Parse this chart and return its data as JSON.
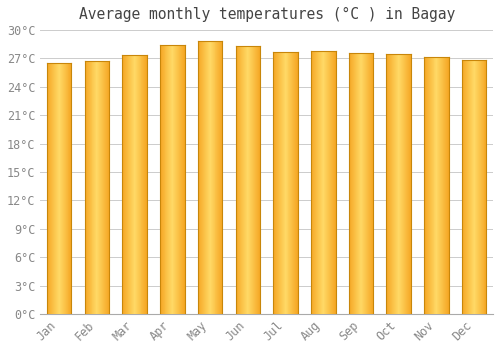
{
  "title": "Average monthly temperatures (°C ) in Bagay",
  "months": [
    "Jan",
    "Feb",
    "Mar",
    "Apr",
    "May",
    "Jun",
    "Jul",
    "Aug",
    "Sep",
    "Oct",
    "Nov",
    "Dec"
  ],
  "values": [
    26.5,
    26.7,
    27.4,
    28.4,
    28.8,
    28.3,
    27.7,
    27.8,
    27.6,
    27.5,
    27.2,
    26.8
  ],
  "bar_color_center": "#FFD966",
  "bar_color_edge": "#F5A623",
  "bar_edge_color": "#C8860A",
  "background_color": "#FFFFFF",
  "plot_bg_color": "#FFFFFF",
  "grid_color": "#CCCCCC",
  "tick_label_color": "#888888",
  "title_color": "#444444",
  "ylim": [
    0,
    30
  ],
  "ytick_interval": 3,
  "title_fontsize": 10.5,
  "tick_fontsize": 8.5,
  "bar_width": 0.65
}
